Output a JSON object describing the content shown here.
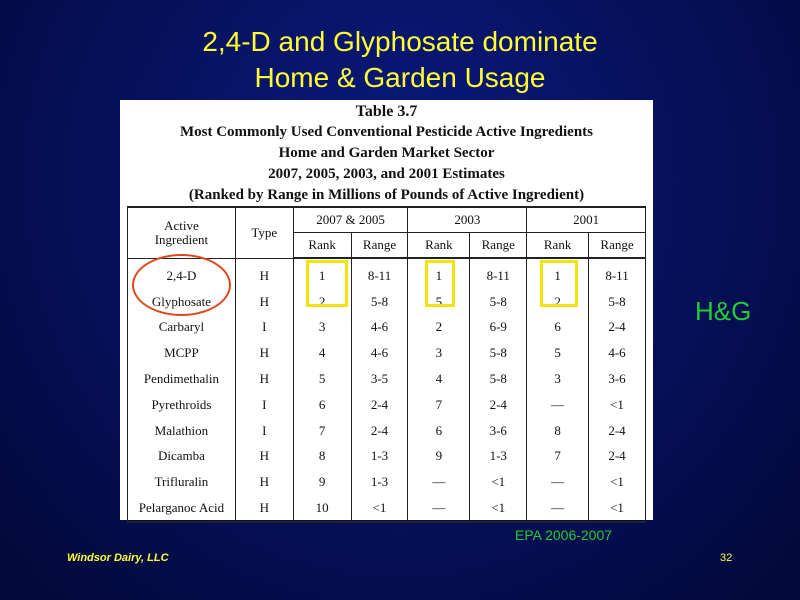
{
  "slide": {
    "title_line1": "2,4-D and Glyphosate dominate",
    "title_line2": "Home & Garden Usage",
    "side_label": "H&G",
    "source": "EPA 2006-2007",
    "footer_left": "Windsor Dairy, LLC",
    "page_number": "32"
  },
  "table": {
    "caption_number": "Table 3.7",
    "caption_line1": "Most Commonly Used Conventional Pesticide Active Ingredients",
    "caption_line2": "Home and Garden Market Sector",
    "caption_line3": "2007, 2005, 2003, and 2001 Estimates",
    "caption_line4": "(Ranked by Range in Millions of Pounds of Active Ingredient)",
    "col_active_ingredient": "Active Ingredient",
    "col_type": "Type",
    "group_2007_2005": "2007 & 2005",
    "group_2003": "2003",
    "group_2001": "2001",
    "sub_rank": "Rank",
    "sub_range": "Range",
    "rows": [
      [
        "2,4-D",
        "H",
        "1",
        "8-11",
        "1",
        "8-11",
        "1",
        "8-11"
      ],
      [
        "Glyphosate",
        "H",
        "2",
        "5-8",
        "5",
        "5-8",
        "2",
        "5-8"
      ],
      [
        "Carbaryl",
        "I",
        "3",
        "4-6",
        "2",
        "6-9",
        "6",
        "2-4"
      ],
      [
        "MCPP",
        "H",
        "4",
        "4-6",
        "3",
        "5-8",
        "5",
        "4-6"
      ],
      [
        "Pendimethalin",
        "H",
        "5",
        "3-5",
        "4",
        "5-8",
        "3",
        "3-6"
      ],
      [
        "Pyrethroids",
        "I",
        "6",
        "2-4",
        "7",
        "2-4",
        "—",
        "<1"
      ],
      [
        "Malathion",
        "I",
        "7",
        "2-4",
        "6",
        "3-6",
        "8",
        "2-4"
      ],
      [
        "Dicamba",
        "H",
        "8",
        "1-3",
        "9",
        "1-3",
        "7",
        "2-4"
      ],
      [
        "Trifluralin",
        "H",
        "9",
        "1-3",
        "—",
        "<1",
        "—",
        "<1"
      ],
      [
        "Pelarganoc Acid",
        "H",
        "10",
        "<1",
        "—",
        "<1",
        "—",
        "<1"
      ]
    ]
  },
  "colors": {
    "title": "#ffff33",
    "highlight_box": "#f2e20e",
    "circle": "#e0481c",
    "green_text": "#22cc33"
  }
}
